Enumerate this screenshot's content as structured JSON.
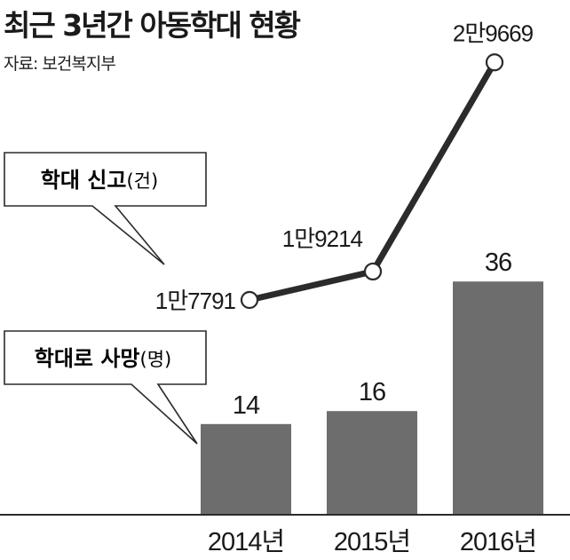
{
  "header": {
    "title": "최근 3년간 아동학대 현황",
    "source": "자료: 보건복지부"
  },
  "colors": {
    "bar": "#6d6d6d",
    "line": "#2b2b2b",
    "text": "#1a1a1a"
  },
  "callouts": {
    "reports": {
      "strong": "학대 신고",
      "unit": "(건)"
    },
    "deaths": {
      "strong": "학대로 사망",
      "unit": "(명)"
    }
  },
  "chart_data": {
    "type": "bar",
    "categories": [
      "2014년",
      "2015년",
      "2016년"
    ],
    "series": [
      {
        "type": "bar",
        "values": [
          14,
          16,
          36
        ],
        "labels": [
          "14",
          "16",
          "36"
        ]
      },
      {
        "type": "line",
        "values": [
          17791,
          19214,
          29669
        ],
        "labels": [
          "1만7791",
          "1만9214",
          "2만9669"
        ]
      }
    ],
    "xlabel": "",
    "ylabel": "",
    "grid": false,
    "legend": "callouts"
  }
}
